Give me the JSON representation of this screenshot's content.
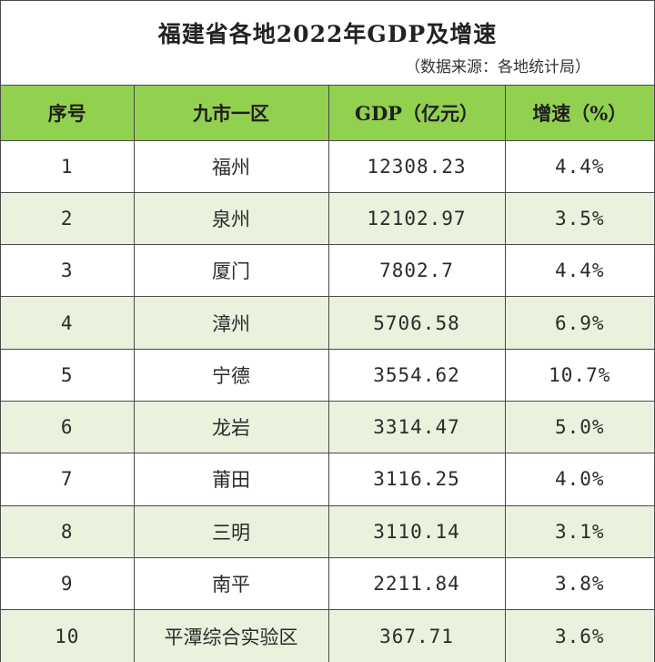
{
  "title": "福建省各地2022年GDP及增速",
  "source": "（数据来源：各地统计局）",
  "headers": [
    "序号",
    "九市一区",
    "GDP（亿元）",
    "增速（%）"
  ],
  "rows": [
    {
      "no": "1",
      "name": "福州",
      "gdp": "12308.23",
      "growth": "4.4%"
    },
    {
      "no": "2",
      "name": "泉州",
      "gdp": "12102.97",
      "growth": "3.5%"
    },
    {
      "no": "3",
      "name": "厦门",
      "gdp": "7802.7",
      "growth": "4.4%"
    },
    {
      "no": "4",
      "name": "漳州",
      "gdp": "5706.58",
      "growth": "6.9%"
    },
    {
      "no": "5",
      "name": "宁德",
      "gdp": "3554.62",
      "growth": "10.7%"
    },
    {
      "no": "6",
      "name": "龙岩",
      "gdp": "3314.47",
      "growth": "5.0%"
    },
    {
      "no": "7",
      "name": "莆田",
      "gdp": "3116.25",
      "growth": "4.0%"
    },
    {
      "no": "8",
      "name": "三明",
      "gdp": "3110.14",
      "growth": "3.1%"
    },
    {
      "no": "9",
      "name": "南平",
      "gdp": "2211.84",
      "growth": "3.8%"
    },
    {
      "no": "10",
      "name": "平潭综合实验区",
      "gdp": "367.71",
      "growth": "3.6%"
    }
  ],
  "colors": {
    "header_bg": "#92d050",
    "stripe_bg": "#eaf1dd",
    "border": "#4a4a4a"
  }
}
